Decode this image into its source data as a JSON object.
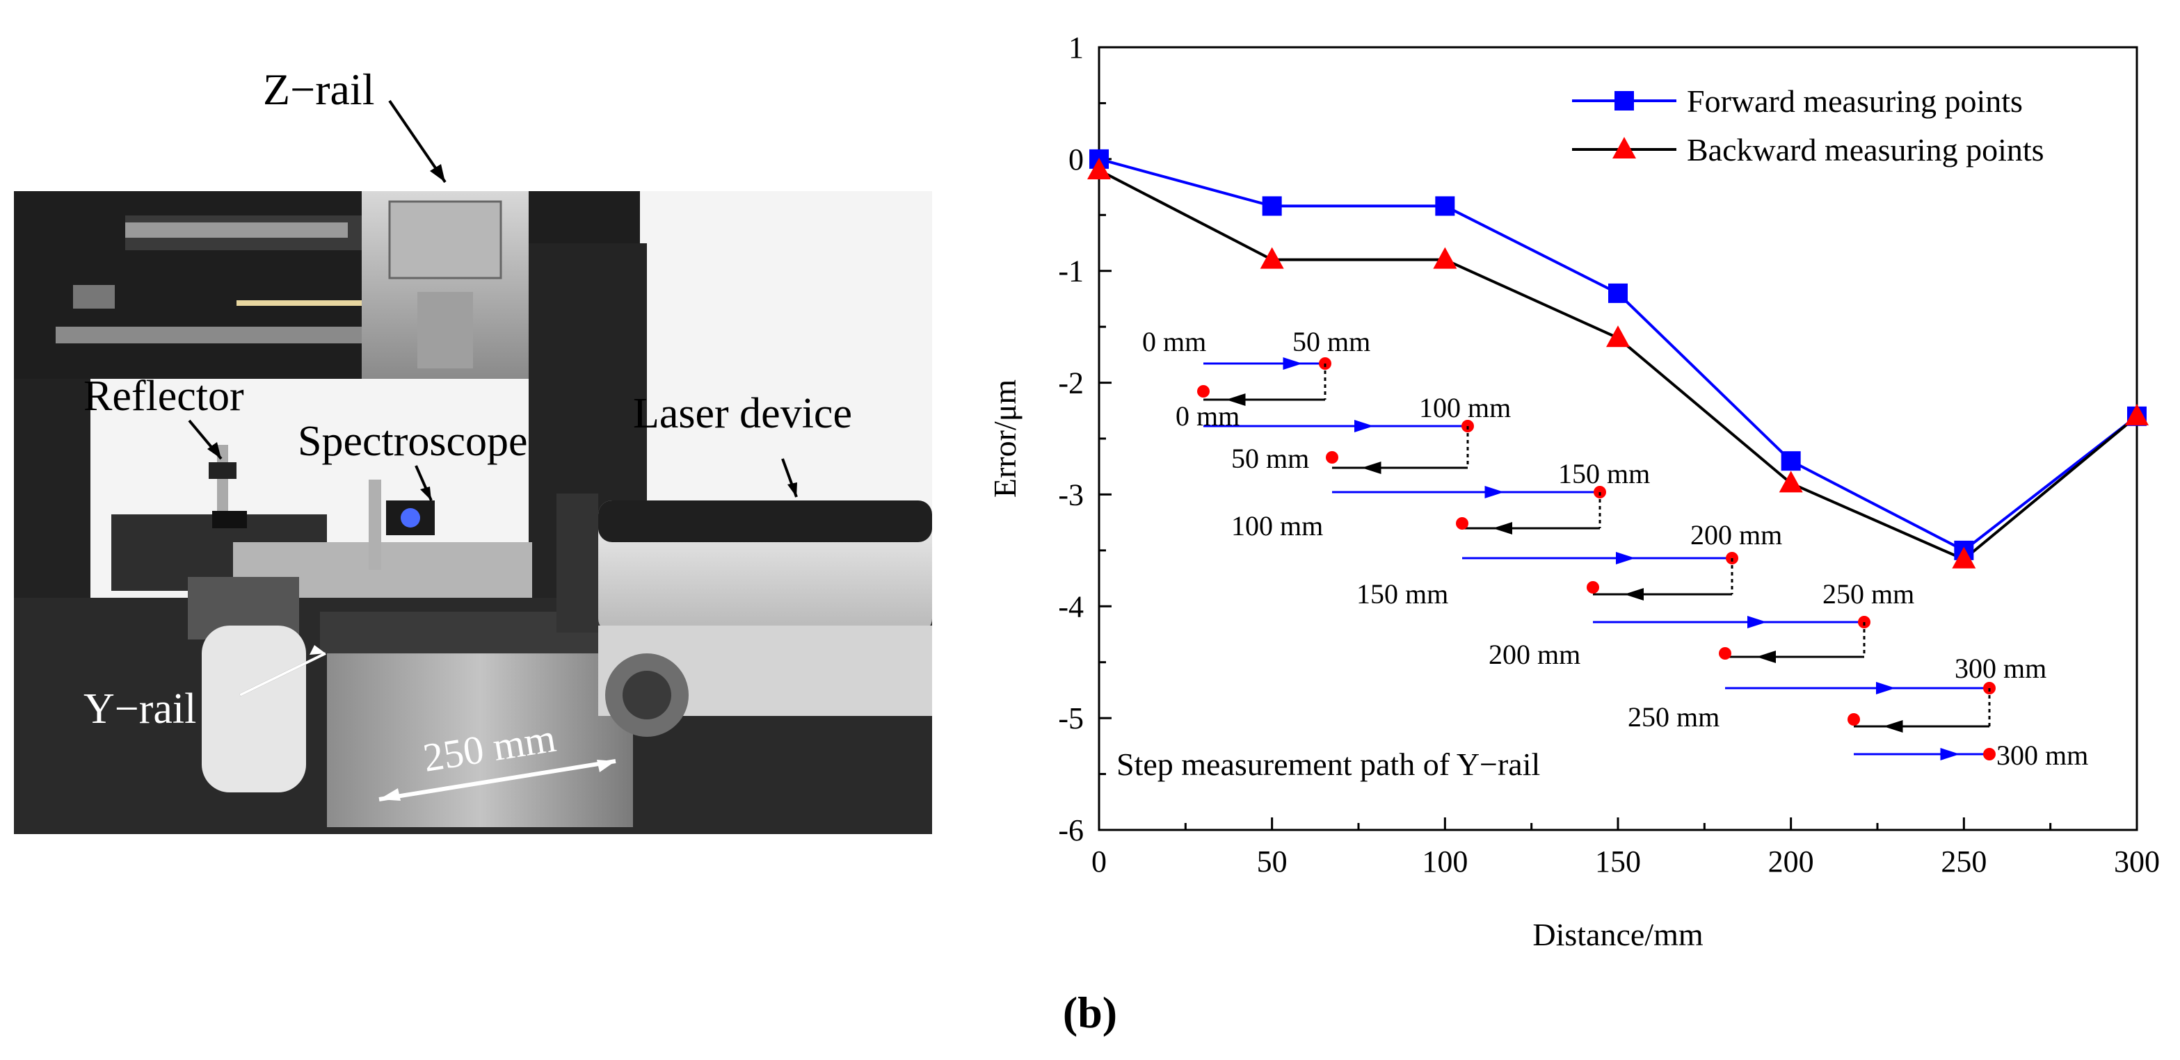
{
  "photo": {
    "labels": {
      "z_rail": "Z−rail",
      "reflector": "Reflector",
      "spectroscope": "Spectroscope",
      "laser_device": "Laser device",
      "y_rail": "Y−rail",
      "length": "250 mm"
    }
  },
  "caption": "(b)",
  "chart_data": {
    "type": "line",
    "xlabel": "Distance/mm",
    "ylabel": "Error/μm",
    "xlim": [
      0,
      300
    ],
    "ylim": [
      -6,
      1
    ],
    "x_ticks": [
      0,
      50,
      100,
      150,
      200,
      250,
      300
    ],
    "y_ticks": [
      1,
      0,
      -1,
      -2,
      -3,
      -4,
      -5,
      -6
    ],
    "legend_position": "top-right",
    "grid": false,
    "series": [
      {
        "name": "Forward measuring points",
        "marker": "square",
        "color": "#0000ff",
        "x": [
          0,
          50,
          100,
          150,
          200,
          250,
          300
        ],
        "values": [
          0,
          -0.42,
          -0.42,
          -1.2,
          -2.7,
          -3.5,
          -2.3
        ]
      },
      {
        "name": "Backward measuring points",
        "marker": "triangle",
        "color": "#ff0000",
        "line_color": "#000000",
        "x": [
          0,
          50,
          100,
          150,
          200,
          250,
          300
        ],
        "values": [
          -0.1,
          -0.9,
          -0.9,
          -1.6,
          -2.9,
          -3.58,
          -2.3
        ]
      }
    ],
    "inset": {
      "title": "Step measurement path of Y−rail",
      "labels": [
        "0 mm",
        "50 mm",
        "0 mm",
        "100 mm",
        "50 mm",
        "150 mm",
        "100 mm",
        "200 mm",
        "150 mm",
        "250 mm",
        "200 mm",
        "300 mm",
        "250 mm",
        "300 mm"
      ]
    }
  }
}
